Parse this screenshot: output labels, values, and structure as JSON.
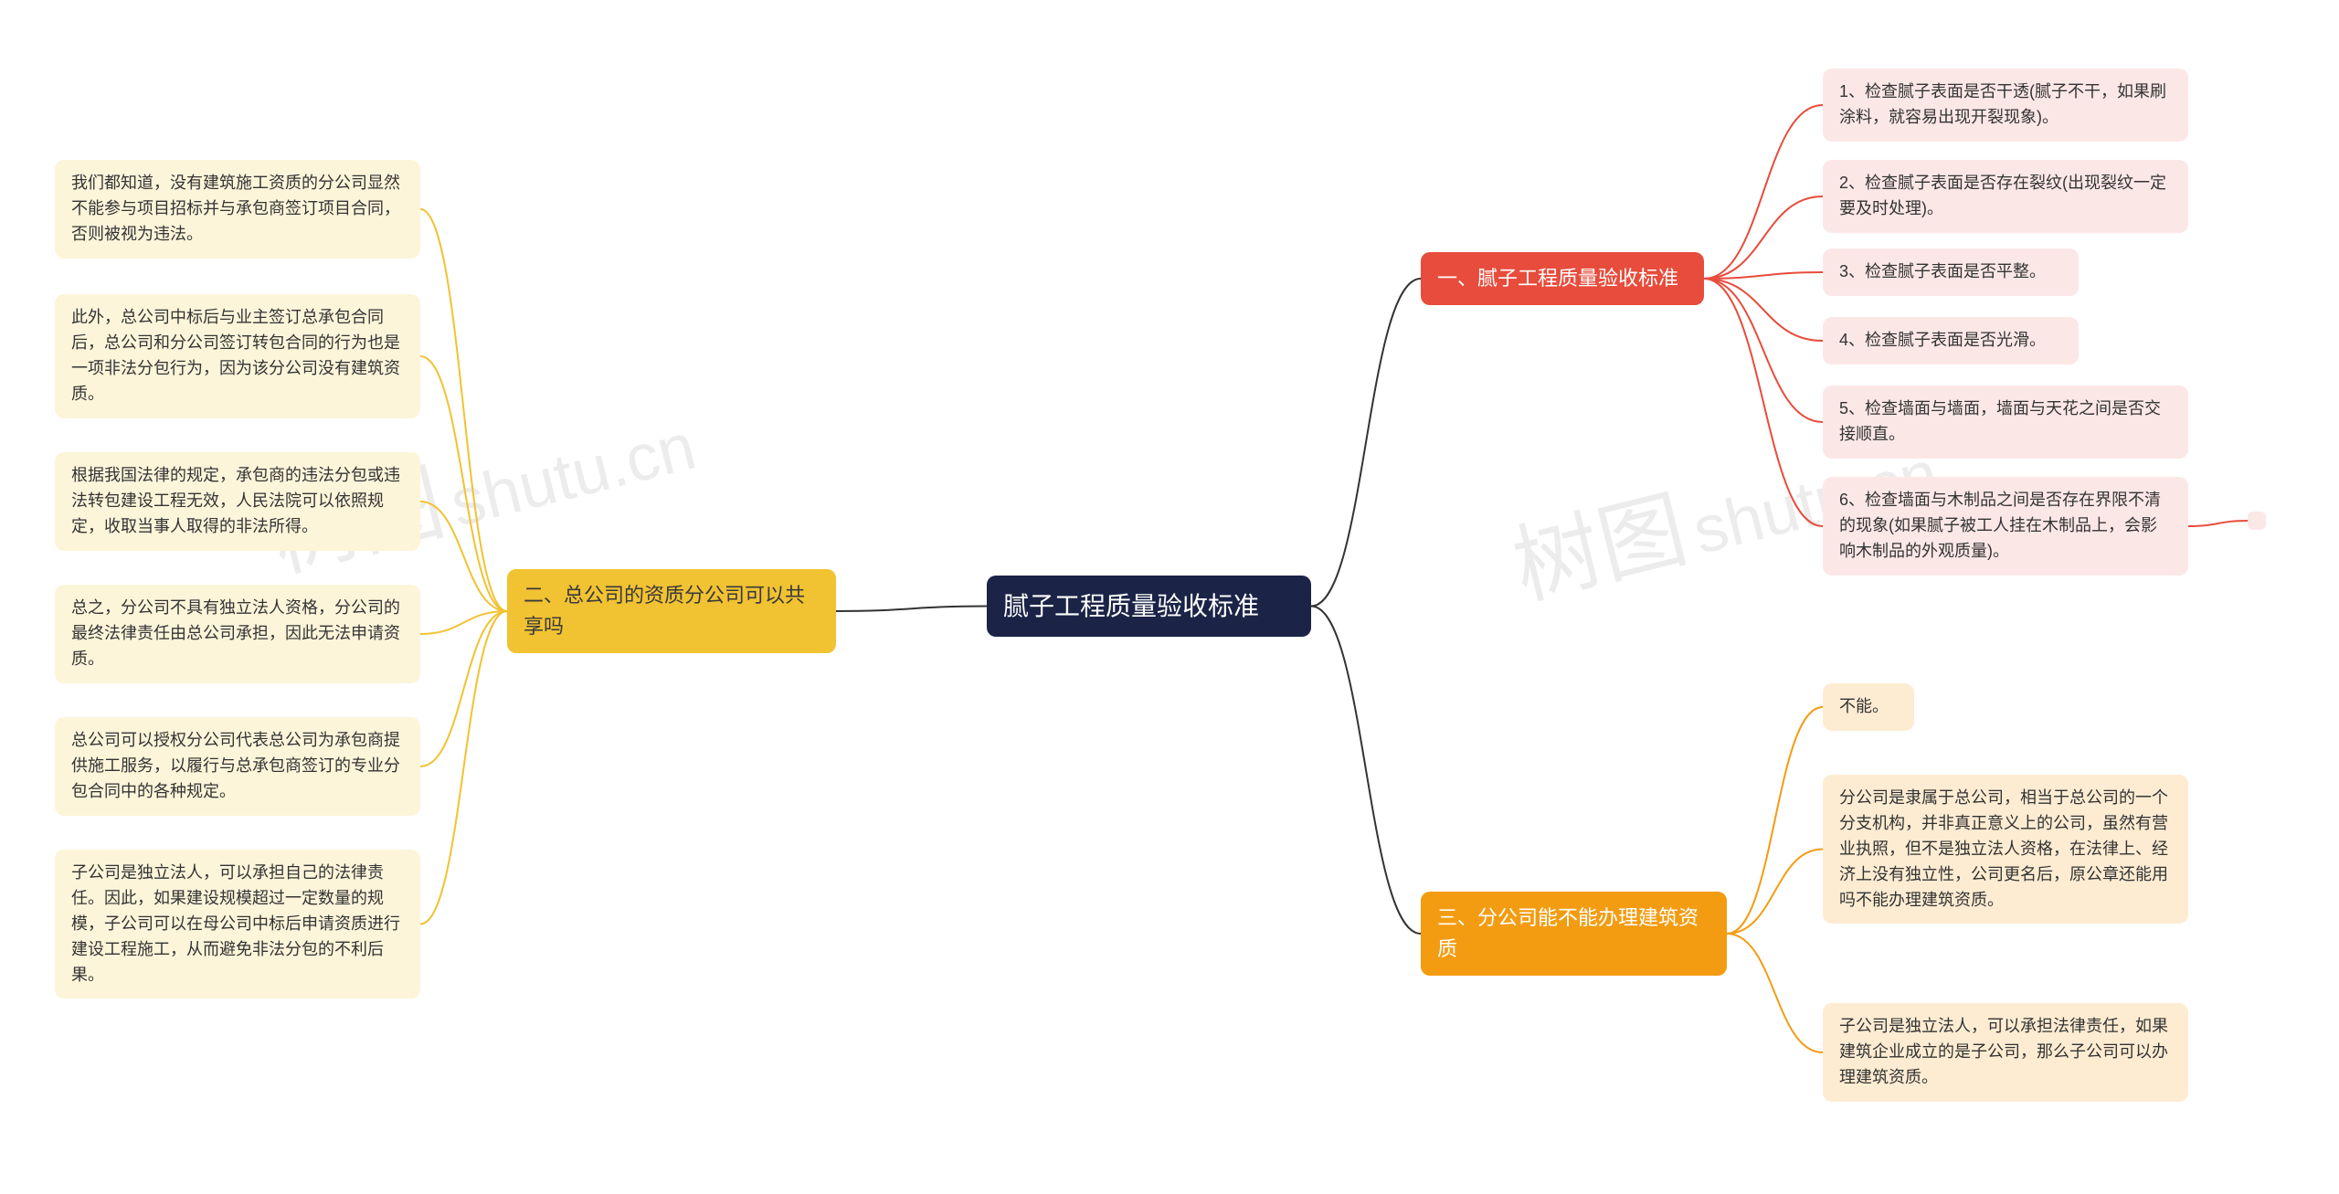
{
  "colors": {
    "root_bg": "#1b2447",
    "root_fg": "#ffffff",
    "b1_bg": "#e74c3c",
    "b1_fg": "#ffffff",
    "b1_leaf_bg": "#fce7e7",
    "b1_leaf_fg": "#333333",
    "b1_line": "#e74c3c",
    "b2_bg": "#f1c232",
    "b2_fg": "#3a3a3a",
    "b2_leaf_bg": "#fdf5da",
    "b2_leaf_fg": "#333333",
    "b2_line": "#f1c232",
    "b3_bg": "#f39c12",
    "b3_fg": "#ffffff",
    "b3_leaf_bg": "#fdecd2",
    "b3_leaf_fg": "#333333",
    "b3_line": "#f39c12",
    "root_line": "#333333",
    "tail_bg": "#fce7e7"
  },
  "fonts": {
    "root_size": 28,
    "branch_size": 22,
    "leaf_size": 18
  },
  "root": {
    "label": "腻子工程质量验收标准"
  },
  "branch1": {
    "label": "一、腻子工程质量验收标准",
    "leaves": [
      "1、检查腻子表面是否干透(腻子不干，如果刷涂料，就容易出现开裂现象)。",
      "2、检查腻子表面是否存在裂纹(出现裂纹一定要及时处理)。",
      "3、检查腻子表面是否平整。",
      "4、检查腻子表面是否光滑。",
      "5、检查墙面与墙面，墙面与天花之间是否交接顺直。",
      "6、检查墙面与木制品之间是否存在界限不清的现象(如果腻子被工人挂在木制品上，会影响木制品的外观质量)。"
    ]
  },
  "branch2": {
    "label": "二、总公司的资质分公司可以共享吗",
    "leaves": [
      "我们都知道，没有建筑施工资质的分公司显然不能参与项目招标并与承包商签订项目合同，否则被视为违法。",
      "此外，总公司中标后与业主签订总承包合同后，总公司和分公司签订转包合同的行为也是一项非法分包行为，因为该分公司没有建筑资质。",
      "根据我国法律的规定，承包商的违法分包或违法转包建设工程无效，人民法院可以依照规定，收取当事人取得的非法所得。",
      "总之，分公司不具有独立法人资格，分公司的最终法律责任由总公司承担，因此无法申请资质。",
      "总公司可以授权分公司代表总公司为承包商提供施工服务，以履行与总承包商签订的专业分包合同中的各种规定。",
      "子公司是独立法人，可以承担自己的法律责任。因此，如果建设规模超过一定数量的规模，子公司可以在母公司中标后申请资质进行建设工程施工，从而避免非法分包的不利后果。"
    ]
  },
  "branch3": {
    "label": "三、分公司能不能办理建筑资质",
    "leaves": [
      "不能。",
      "分公司是隶属于总公司，相当于总公司的一个分支机构，并非真正意义上的公司，虽然有营业执照，但不是独立法人资格，在法律上、经济上没有独立性，公司更名后，原公章还能用吗不能办理建筑资质。",
      "子公司是独立法人，可以承担法律责任，如果建筑企业成立的是子公司，那么子公司可以办理建筑资质。"
    ]
  },
  "watermarks": {
    "text_a": "树图",
    "text_b": "shutu.cn"
  }
}
